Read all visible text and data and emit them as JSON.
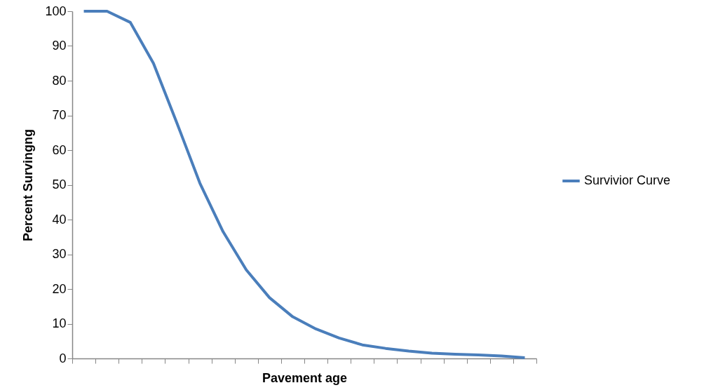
{
  "chart_data": {
    "type": "line",
    "xlabel": "Pavement age",
    "ylabel": "Percent Survingng",
    "categories": [
      null,
      null,
      null,
      null,
      null,
      null,
      null,
      null,
      null,
      null,
      null,
      null,
      null,
      null,
      null,
      null,
      null,
      null,
      null,
      null
    ],
    "series": [
      {
        "name": "Survivior Curve",
        "color": "#4a7ebb",
        "values": [
          100,
          100,
          96.8,
          85,
          68,
          50.5,
          36.5,
          25.5,
          17.5,
          12,
          8.5,
          5.9,
          3.9,
          2.9,
          2.1,
          1.5,
          1.2,
          1,
          0.7,
          0.2
        ]
      }
    ],
    "ylim": [
      0,
      100
    ],
    "yticks": [
      0,
      10,
      20,
      30,
      40,
      50,
      60,
      70,
      80,
      90,
      100
    ],
    "grid": false,
    "legend": "right",
    "marker": "none",
    "line_style": "solid",
    "tick_labels": "y"
  }
}
